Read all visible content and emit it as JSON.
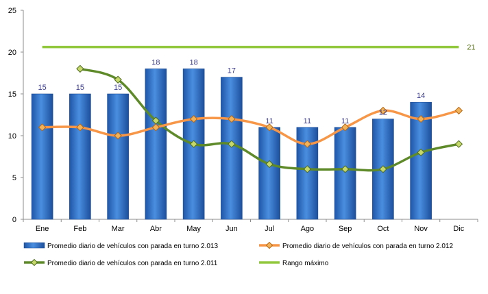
{
  "chart_data": {
    "type": "bar",
    "categories": [
      "Ene",
      "Feb",
      "Mar",
      "Abr",
      "May",
      "Jun",
      "Jul",
      "Ago",
      "Sep",
      "Oct",
      "Nov",
      "Dic"
    ],
    "ylim": [
      0,
      25
    ],
    "yticks": [
      0,
      5,
      10,
      15,
      20,
      25
    ],
    "grid": false,
    "legend_position": "bottom",
    "bar_series": {
      "name": "Promedio diario de vehículos con parada en turno 2.013",
      "values": [
        15,
        15,
        15,
        18,
        18,
        17,
        11,
        11,
        11,
        12,
        14,
        null
      ],
      "labels": [
        "15",
        "15",
        "15",
        "18",
        "18",
        "17",
        "11",
        "11",
        "11",
        "12",
        "14",
        ""
      ],
      "color": "#2f6fc4"
    },
    "line_series": [
      {
        "name": "Promedio diario de vehículos con parada en turno 2.012",
        "values": [
          11,
          11,
          10,
          11,
          12,
          12,
          11,
          9,
          11,
          13,
          12,
          13
        ],
        "color": "#f79646",
        "marker": "diamond"
      },
      {
        "name": "Promedio diario de vehículos con parada en turno 2.011",
        "values": [
          null,
          18,
          16.7,
          11.8,
          9,
          9,
          6.6,
          6,
          6,
          6,
          8,
          9
        ],
        "color": "#5f8a2a",
        "marker": "diamond"
      }
    ],
    "reference_line": {
      "name": "Rango máximo",
      "value": 20.6,
      "label": "21",
      "color": "#92c83e"
    },
    "label_color": "#3b3b8f"
  }
}
